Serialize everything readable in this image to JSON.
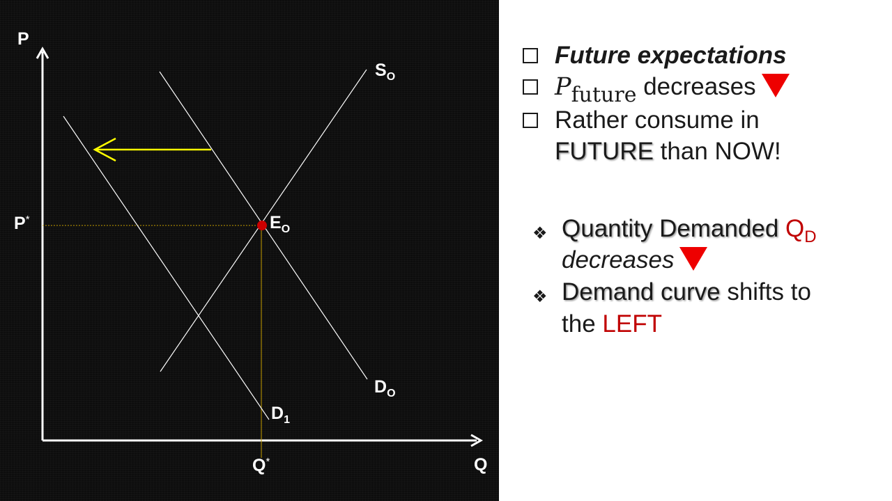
{
  "diagram": {
    "axis_y_label": "P",
    "axis_x_label": "Q",
    "price_label": "P",
    "price_star": "*",
    "quantity_label": "Q",
    "quantity_star": "*",
    "supply_label": "S",
    "supply_sub": "O",
    "demand_orig_label": "D",
    "demand_orig_sub": "O",
    "demand_new_label": "D",
    "demand_new_sub": "1",
    "equilibrium_label": "E",
    "equilibrium_sub": "O",
    "colors": {
      "background": "#0d0d0d",
      "axis": "#ffffff",
      "curve": "#ffffff",
      "arrow": "#ffff00",
      "equilibrium_point": "#cc0000",
      "dotted_guide": "#c8a000"
    }
  },
  "notes": {
    "checklist": [
      {
        "text": "Future expectations"
      },
      {
        "math_base": "P",
        "math_sub": "future",
        "text": "decreases"
      },
      {
        "line1": "Rather consume in",
        "line2_emph": "FUTURE",
        "line2_rest": "than NOW!"
      }
    ],
    "effects": [
      {
        "emph": "Quantity Demanded",
        "red_base": "Q",
        "red_sub": "D",
        "line2": "decreases"
      },
      {
        "emph": "Demand curve",
        "rest": "shifts to",
        "line2_pre": "the",
        "line2_red": "LEFT"
      }
    ],
    "bullet_box_icon": "checkbox-icon",
    "bullet_diamond_icon": "diamond-bullet-icon",
    "decrease_icon": "red-down-triangle-icon"
  }
}
